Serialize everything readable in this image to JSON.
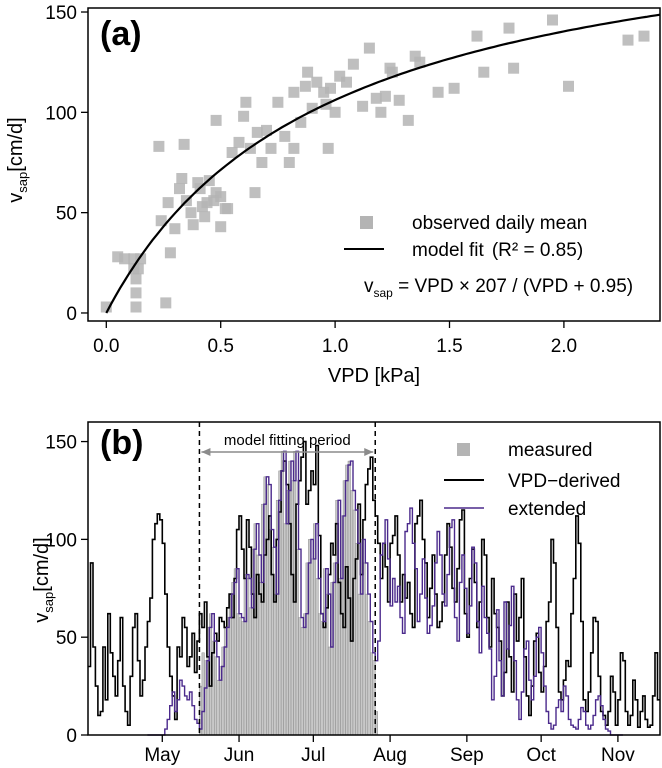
{
  "colors": {
    "measured": "#c8c8c8",
    "measured_stroke": "#8c8c8c",
    "observed": "#b4b4b4",
    "fit": "#000000",
    "vpd_derived": "#000000",
    "extended": "#4b2a8c"
  },
  "chart_data": [
    {
      "type": "scatter",
      "panel_label": "(a)",
      "xlabel": "VPD [kPa]",
      "ylabel_main": "v",
      "ylabel_sub": "sap",
      "ylabel_unit": "[cm/d]",
      "xlim": [
        -0.08,
        2.42
      ],
      "ylim": [
        -4,
        152
      ],
      "xticks": [
        0.0,
        0.5,
        1.0,
        1.5,
        2.0
      ],
      "xtick_labels": [
        "0.0",
        "0.5",
        "1.0",
        "1.5",
        "2.0"
      ],
      "yticks": [
        0,
        50,
        100,
        150
      ],
      "ytick_labels": [
        "0",
        "50",
        "100",
        "150"
      ],
      "legend": {
        "placement": "bottom-right",
        "observed_label": "observed daily mean",
        "fit_label": "model fit",
        "r2_label": "(R² = 0.85)",
        "eq_v": "v",
        "eq_sub": "sap",
        "eq_rest": " = VPD × 207 / (VPD + 0.95)"
      },
      "model": {
        "a": 207,
        "b": 0.95
      },
      "series": [
        {
          "name": "observed daily mean",
          "points": [
            [
              0.0,
              3
            ],
            [
              0.05,
              28
            ],
            [
              0.08,
              27
            ],
            [
              0.12,
              27
            ],
            [
              0.12,
              22
            ],
            [
              0.13,
              10
            ],
            [
              0.13,
              3
            ],
            [
              0.13,
              17
            ],
            [
              0.14,
              22
            ],
            [
              0.15,
              27
            ],
            [
              0.23,
              83
            ],
            [
              0.24,
              46
            ],
            [
              0.26,
              5
            ],
            [
              0.27,
              55
            ],
            [
              0.28,
              30
            ],
            [
              0.3,
              42
            ],
            [
              0.32,
              62
            ],
            [
              0.33,
              67
            ],
            [
              0.34,
              84
            ],
            [
              0.35,
              56
            ],
            [
              0.37,
              50
            ],
            [
              0.38,
              44
            ],
            [
              0.4,
              65
            ],
            [
              0.41,
              62
            ],
            [
              0.42,
              53
            ],
            [
              0.43,
              48
            ],
            [
              0.44,
              55
            ],
            [
              0.45,
              66
            ],
            [
              0.47,
              56
            ],
            [
              0.48,
              60
            ],
            [
              0.48,
              96
            ],
            [
              0.5,
              58
            ],
            [
              0.5,
              43
            ],
            [
              0.52,
              52
            ],
            [
              0.53,
              52
            ],
            [
              0.55,
              80
            ],
            [
              0.58,
              85
            ],
            [
              0.6,
              98
            ],
            [
              0.61,
              105
            ],
            [
              0.63,
              82
            ],
            [
              0.65,
              60
            ],
            [
              0.66,
              90
            ],
            [
              0.68,
              75
            ],
            [
              0.7,
              91
            ],
            [
              0.72,
              82
            ],
            [
              0.75,
              105
            ],
            [
              0.78,
              88
            ],
            [
              0.8,
              75
            ],
            [
              0.82,
              82
            ],
            [
              0.82,
              110
            ],
            [
              0.85,
              95
            ],
            [
              0.87,
              113
            ],
            [
              0.88,
              120
            ],
            [
              0.9,
              102
            ],
            [
              0.92,
              115
            ],
            [
              0.95,
              110
            ],
            [
              0.96,
              104
            ],
            [
              0.97,
              82
            ],
            [
              0.98,
              112
            ],
            [
              1.0,
              100
            ],
            [
              1.02,
              118
            ],
            [
              1.05,
              115
            ],
            [
              1.08,
              124
            ],
            [
              1.12,
              103
            ],
            [
              1.15,
              132
            ],
            [
              1.18,
              107
            ],
            [
              1.2,
              100
            ],
            [
              1.22,
              108
            ],
            [
              1.24,
              122
            ],
            [
              1.25,
              120
            ],
            [
              1.28,
              106
            ],
            [
              1.32,
              96
            ],
            [
              1.35,
              128
            ],
            [
              1.37,
              125
            ],
            [
              1.45,
              110
            ],
            [
              1.52,
              112
            ],
            [
              1.62,
              138
            ],
            [
              1.65,
              120
            ],
            [
              1.76,
              142
            ],
            [
              1.78,
              122
            ],
            [
              1.95,
              146
            ],
            [
              2.02,
              113
            ],
            [
              2.28,
              136
            ],
            [
              2.35,
              138
            ]
          ]
        }
      ]
    },
    {
      "type": "bar",
      "panel_label": "(b)",
      "ylabel_main": "v",
      "ylabel_sub": "sap",
      "ylabel_unit": "[cm/d]",
      "ylim": [
        0,
        160
      ],
      "day_range": [
        105,
        336
      ],
      "yticks": [
        0,
        50,
        100,
        150
      ],
      "ytick_labels": [
        "0",
        "50",
        "100",
        "150"
      ],
      "month_labels": [
        {
          "label": "May",
          "day": 135
        },
        {
          "label": "Jun",
          "day": 166
        },
        {
          "label": "Jul",
          "day": 196
        },
        {
          "label": "Aug",
          "day": 227
        },
        {
          "label": "Sep",
          "day": 258
        },
        {
          "label": "Oct",
          "day": 288
        },
        {
          "label": "Nov",
          "day": 319
        }
      ],
      "fitting_period": {
        "label": "model fitting period",
        "start_day": 150,
        "end_day": 221
      },
      "legend": {
        "placement": "top-right",
        "measured_label": "measured",
        "vpd_label": "VPD−derived",
        "extended_label": "extended"
      },
      "series": [
        {
          "name": "measured",
          "start_day": 150,
          "values": [
            25,
            42,
            38,
            55,
            62,
            48,
            40,
            28,
            35,
            45,
            55,
            60,
            72,
            78,
            85,
            62,
            60,
            58,
            82,
            80,
            65,
            95,
            108,
            92,
            78,
            118,
            132,
            128,
            105,
            96,
            72,
            120,
            135,
            145,
            108,
            125,
            140,
            130,
            145,
            95,
            60,
            55,
            62,
            88,
            100,
            90,
            108,
            80,
            62,
            58,
            85,
            72,
            45,
            78,
            88,
            120,
            80,
            112,
            130,
            138,
            140,
            125,
            115,
            98,
            72,
            100,
            88,
            72,
            58,
            42,
            38,
            12
          ]
        },
        {
          "name": "VPD−derived",
          "start_day": 105,
          "values": [
            35,
            88,
            45,
            25,
            10,
            12,
            45,
            18,
            62,
            42,
            30,
            20,
            38,
            60,
            25,
            12,
            5,
            30,
            55,
            62,
            38,
            20,
            28,
            45,
            58,
            70,
            100,
            108,
            113,
            110,
            98,
            72,
            45,
            30,
            20,
            8,
            45,
            40,
            60,
            55,
            35,
            40,
            52,
            32,
            48,
            62,
            55,
            68,
            40,
            25,
            42,
            52,
            48,
            60,
            58,
            55,
            65,
            72,
            60,
            80,
            105,
            112,
            95,
            80,
            110,
            96,
            72,
            60,
            82,
            72,
            68,
            92,
            100,
            112,
            82,
            68,
            100,
            114,
            135,
            140,
            128,
            108,
            82,
            68,
            118,
            130,
            142,
            150,
            118,
            125,
            135,
            128,
            148,
            102,
            62,
            55,
            65,
            82,
            98,
            92,
            108,
            78,
            62,
            55,
            86,
            70,
            48,
            80,
            90,
            118,
            82,
            110,
            128,
            136,
            142,
            120,
            112,
            98,
            80,
            98,
            86,
            68,
            98,
            102,
            112,
            92,
            68,
            82,
            70,
            78,
            62,
            55,
            108,
            112,
            120,
            100,
            88,
            60,
            75,
            92,
            72,
            55,
            58,
            68,
            92,
            108,
            96,
            75,
            68,
            85,
            110,
            115,
            62,
            50,
            80,
            95,
            78,
            55,
            68,
            100,
            92,
            60,
            45,
            80,
            62,
            55,
            48,
            20,
            32,
            68,
            40,
            22,
            72,
            48,
            60,
            80,
            40,
            20,
            10,
            25,
            48,
            52,
            32,
            22,
            35,
            58,
            68,
            100,
            88,
            55,
            22,
            18,
            28,
            38,
            35,
            62,
            80,
            112,
            98,
            58,
            18,
            12,
            22,
            42,
            60,
            58,
            30,
            12,
            10,
            5,
            12,
            30,
            22,
            5,
            18,
            42,
            38,
            12,
            5,
            10,
            28,
            18,
            4,
            12,
            20,
            8,
            4,
            5,
            20,
            42,
            18,
            5,
            14,
            60,
            20,
            12
          ]
        },
        {
          "name": "extended",
          "start_day": 129,
          "values": [
            0,
            0,
            0,
            0,
            0,
            0,
            0,
            3,
            8,
            15,
            22,
            12,
            18,
            28,
            25,
            20,
            18,
            22,
            15,
            8,
            6,
            3,
            12,
            24,
            38,
            55,
            62,
            48,
            40,
            28,
            35,
            45,
            55,
            60,
            72,
            78,
            85,
            62,
            60,
            58,
            82,
            80,
            65,
            95,
            108,
            92,
            78,
            118,
            132,
            128,
            105,
            96,
            72,
            120,
            135,
            145,
            108,
            125,
            140,
            130,
            145,
            95,
            60,
            55,
            62,
            88,
            100,
            90,
            108,
            80,
            62,
            58,
            85,
            72,
            45,
            78,
            88,
            120,
            80,
            112,
            130,
            138,
            140,
            125,
            115,
            98,
            72,
            100,
            88,
            72,
            58,
            42,
            38,
            48,
            92,
            98,
            110,
            90,
            66,
            80,
            68,
            76,
            60,
            52,
            104,
            108,
            116,
            98,
            85,
            58,
            72,
            90,
            70,
            52,
            56,
            66,
            88,
            104,
            92,
            72,
            66,
            82,
            106,
            110,
            60,
            48,
            78,
            92,
            75,
            52,
            66,
            96,
            88,
            58,
            42,
            76,
            60,
            52,
            44,
            18,
            30,
            64,
            38,
            20,
            68,
            44,
            56,
            76,
            38,
            18,
            8,
            22,
            44,
            48,
            28,
            18,
            30,
            50,
            55,
            42,
            25,
            12,
            6,
            3,
            5,
            14,
            18,
            12,
            25,
            20,
            8,
            5,
            4,
            3,
            8,
            14,
            12,
            5,
            3,
            5,
            10,
            18,
            20,
            15,
            8,
            3,
            2,
            0,
            0,
            0,
            0,
            0
          ]
        }
      ]
    }
  ]
}
